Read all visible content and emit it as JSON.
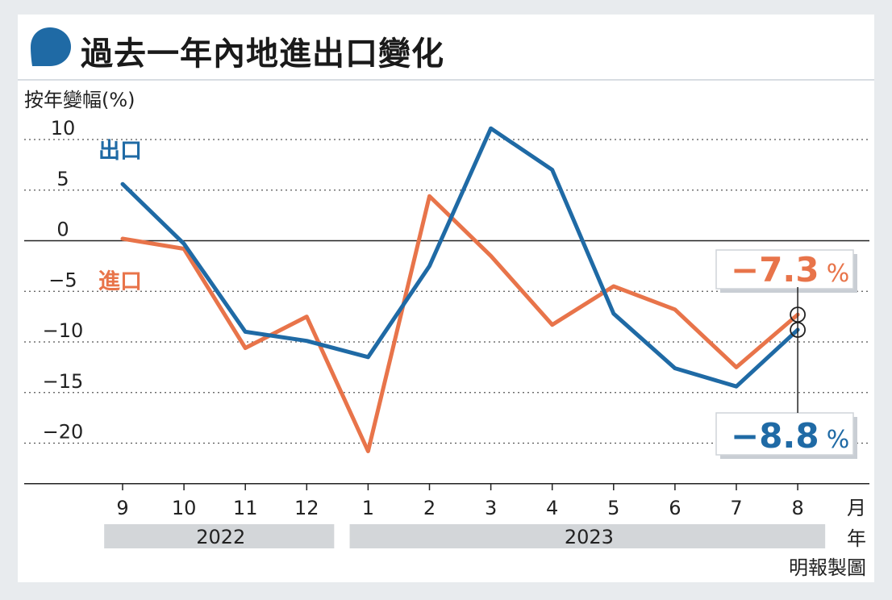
{
  "title": "過去一年內地進出口變化",
  "ylabel": "按年變幅(%)",
  "x_unit_label": "月",
  "year_unit_label": "年",
  "credit": "明報製圖",
  "colors": {
    "export": "#1f6aa5",
    "import": "#e8744a",
    "year_band": "#d3d6d9"
  },
  "series_labels": {
    "export": "出口",
    "import": "進口"
  },
  "callouts": {
    "import": {
      "value": "−7.3",
      "unit": "%"
    },
    "export": {
      "value": "−8.8",
      "unit": "%"
    }
  },
  "chart_data": {
    "type": "line",
    "categories": [
      "9",
      "10",
      "11",
      "12",
      "1",
      "2",
      "3",
      "4",
      "5",
      "6",
      "7",
      "8"
    ],
    "years": [
      {
        "label": "2022",
        "from": 0,
        "to": 3
      },
      {
        "label": "2023",
        "from": 4,
        "to": 11
      }
    ],
    "yticks": [
      10,
      5,
      0,
      -5,
      -10,
      -15,
      -20
    ],
    "ylim": [
      -24,
      11
    ],
    "series": [
      {
        "name": "出口",
        "key": "export",
        "values": [
          5.6,
          -0.3,
          -9.0,
          -9.9,
          -11.5,
          -2.5,
          11.1,
          7.0,
          -7.2,
          -12.6,
          -14.4,
          -8.8
        ]
      },
      {
        "name": "進口",
        "key": "import",
        "values": [
          0.2,
          -0.8,
          -10.6,
          -7.5,
          -20.8,
          4.4,
          -1.5,
          -8.3,
          -4.5,
          -6.8,
          -12.5,
          -7.3
        ]
      }
    ]
  }
}
